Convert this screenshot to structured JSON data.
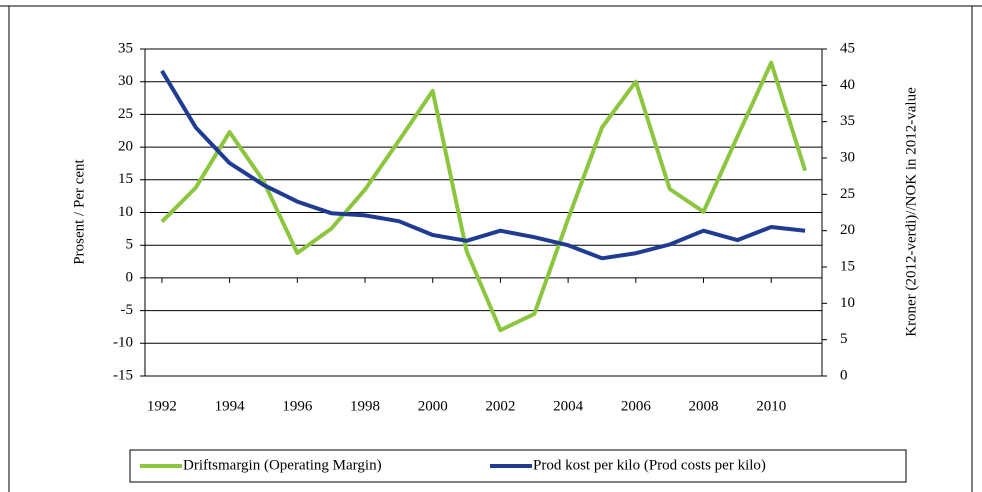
{
  "chart_data": {
    "type": "line",
    "y_label": "Prosent / Per cent",
    "y2_label": "Kroner (2012-verdi)//NOK in 2012-value",
    "x": [
      1992,
      1993,
      1994,
      1995,
      1996,
      1997,
      1998,
      1999,
      2000,
      2001,
      2002,
      2003,
      2004,
      2005,
      2006,
      2007,
      2008,
      2009,
      2010,
      2011
    ],
    "xlim": [
      1991.5,
      2011.5
    ],
    "xticks": [
      1992,
      1994,
      1996,
      1998,
      2000,
      2002,
      2004,
      2006,
      2008,
      2010
    ],
    "ylim": [
      -15,
      35
    ],
    "yticks": [
      -15,
      -10,
      -5,
      0,
      5,
      10,
      15,
      20,
      25,
      30,
      35
    ],
    "y2lim": [
      0,
      45
    ],
    "y2ticks": [
      0,
      5,
      10,
      15,
      20,
      25,
      30,
      35,
      40,
      45
    ],
    "grid": true,
    "legend": "bottom",
    "series": [
      {
        "name": "Driftsmargin (Operating Margin)",
        "color": "#8cc63e",
        "values": [
          8.6,
          13.8,
          22.3,
          14.8,
          3.8,
          7.5,
          13.5,
          21,
          28.6,
          4.1,
          -8,
          -5.5,
          9,
          23,
          30,
          13.6,
          10.1,
          21.6,
          32.9,
          16.4
        ]
      },
      {
        "name": "Prod kost per kilo (Prod costs per kilo)",
        "color": "#1f3b92",
        "axis": "y2",
        "values": [
          42,
          34.2,
          29.3,
          26.3,
          24,
          22.4,
          22.1,
          21.3,
          19.4,
          18.6,
          20,
          19.1,
          18,
          16.2,
          16.9,
          18.1,
          20,
          18.7,
          20.5,
          20
        ]
      }
    ]
  }
}
